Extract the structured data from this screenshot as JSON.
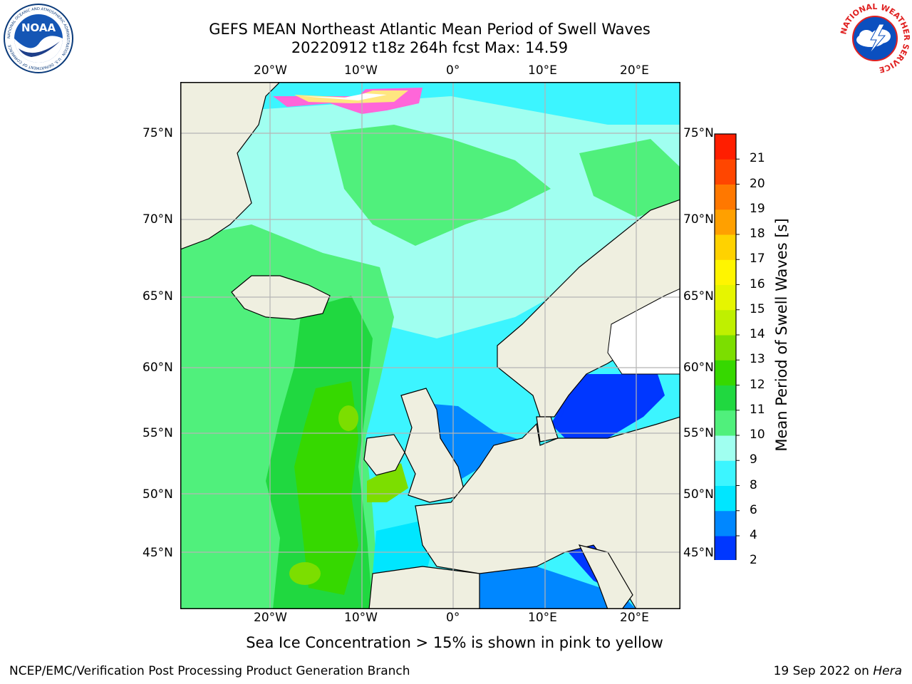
{
  "title": {
    "line1": "GEFS MEAN Northeast Atlantic Mean Period of Swell Waves",
    "line2": "20220912 t18z 264h fcst   Max: 14.59"
  },
  "map": {
    "lon_labels": [
      "20°W",
      "10°W",
      "0°",
      "10°E",
      "20°E"
    ],
    "lat_labels": [
      "75°N",
      "70°N",
      "65°N",
      "60°N",
      "55°N",
      "50°N",
      "45°N"
    ],
    "colors": {
      "land": "#efefe0",
      "gridline": "#b5b5b5"
    }
  },
  "colorbar": {
    "label": "Mean Period of Swell Waves [s]",
    "ticks": [
      "2",
      "4",
      "6",
      "8",
      "9",
      "10",
      "11",
      "12",
      "13",
      "14",
      "15",
      "16",
      "17",
      "18",
      "19",
      "20",
      "21"
    ],
    "colors": [
      "#0037ff",
      "#0087ff",
      "#00e6ff",
      "#3cf5ff",
      "#a0fff0",
      "#50f07c",
      "#20d840",
      "#36d800",
      "#7cde00",
      "#bff000",
      "#e6f500",
      "#fff500",
      "#ffd200",
      "#ffa000",
      "#ff7800",
      "#ff4600",
      "#ff1e00"
    ]
  },
  "note": "Sea Ice Concentration > 15% is shown in pink to yellow",
  "footer": {
    "left": "NCEP/EMC/Verification Post Processing Product Generation Branch",
    "right_prefix": "19 Sep 2022 on ",
    "right_host": "Hera"
  },
  "logos": {
    "noaa_text": "NOAA",
    "noaa_ring": "NATIONAL OCEANIC AND ATMOSPHERIC ADMINISTRATION · U.S. DEPARTMENT OF COMMERCE",
    "nws_ring": "NATIONAL WEATHER SERVICE"
  }
}
